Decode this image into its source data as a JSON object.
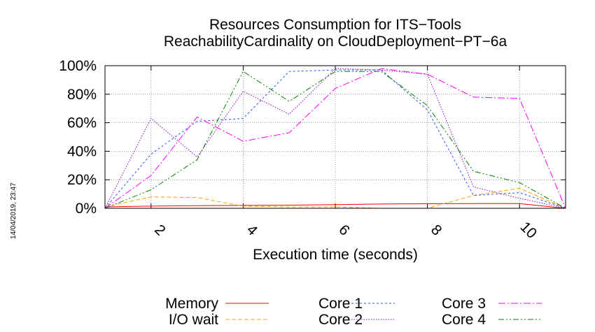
{
  "chart_data": {
    "type": "line",
    "title": [
      "Resources Consumption for ITS−Tools",
      "ReachabilityCardinality on CloudDeployment−PT−6a"
    ],
    "xlabel": "Execution time (seconds)",
    "ylabel": "",
    "xlim": [
      1,
      11
    ],
    "ylim": [
      0,
      100
    ],
    "xticks": [
      2,
      4,
      6,
      8,
      10
    ],
    "xtick_labels": [
      "2",
      "4",
      "6",
      "8",
      "10"
    ],
    "yticks": [
      0,
      20,
      40,
      60,
      80,
      100
    ],
    "ytick_labels": [
      "0%",
      "20%",
      "40%",
      "60%",
      "80%",
      "100%"
    ],
    "grid": true,
    "legend_position": "bottom",
    "x": [
      1,
      2,
      3,
      4,
      5,
      6,
      7,
      8,
      9,
      10,
      11
    ],
    "series": [
      {
        "name": "Memory",
        "color": "#ff0000",
        "dash": "solid",
        "values": [
          1,
          1.5,
          1.8,
          2,
          2.2,
          2.6,
          3,
          3.2,
          3.3,
          3.3,
          0
        ]
      },
      {
        "name": "I/O wait",
        "color": "#ffa000",
        "dash": "dashed",
        "values": [
          1,
          8,
          7.5,
          1.5,
          1,
          1,
          0,
          0,
          9,
          14,
          0
        ]
      },
      {
        "name": "Core 1",
        "color": "#3050f8",
        "dash": "dotted-fine",
        "values": [
          0,
          38,
          61,
          63,
          96,
          97,
          97,
          69,
          9,
          11,
          0
        ]
      },
      {
        "name": "Core 2",
        "color": "#9400d3",
        "dash": "dotted",
        "values": [
          0,
          63,
          36,
          82,
          66,
          98,
          97,
          94,
          15,
          7,
          0
        ]
      },
      {
        "name": "Core 3",
        "color": "#ff00ff",
        "dash": "dashdot",
        "values": [
          0,
          23,
          64,
          47,
          53,
          84,
          98,
          94,
          78,
          77,
          0
        ]
      },
      {
        "name": "Core 4",
        "color": "#008000",
        "dash": "dashdotdot",
        "values": [
          0,
          13,
          34,
          96,
          75,
          96,
          96,
          72,
          26,
          18,
          0
        ]
      }
    ]
  },
  "timestamp": "14/04/2019, 23:47"
}
